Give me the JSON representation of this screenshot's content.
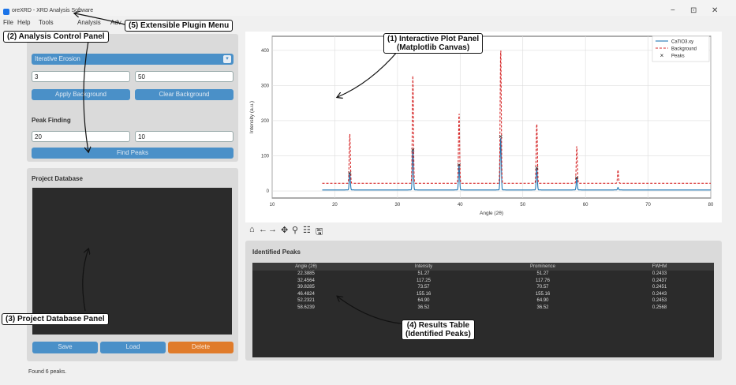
{
  "window": {
    "title": "oreXRD - XRD Analysis Software",
    "minimize": "−",
    "maximize": "⊡",
    "close": "✕"
  },
  "menu": [
    "File",
    "Help",
    "Tools",
    "Analysis",
    "Adv"
  ],
  "control_panel": {
    "method_select": "Iterative Erosion",
    "param1": "3",
    "param2": "50",
    "apply_background": "Apply Background",
    "clear_background": "Clear Background",
    "peak_finding_title": "Peak Finding",
    "peak_param1": "20",
    "peak_param2": "10",
    "find_peaks": "Find Peaks"
  },
  "database_panel": {
    "title": "Project Database",
    "save": "Save",
    "load": "Load",
    "delete": "Delete"
  },
  "status": "Found 6 peaks.",
  "toolbar": {
    "home_icon": "⌂",
    "back_icon": "←",
    "forward_icon": "→",
    "pan_icon": "✥",
    "zoom_icon": "⚲",
    "config_icon": "☷",
    "save_icon": "🖫"
  },
  "results": {
    "title": "Identified Peaks",
    "columns": [
      "Angle (2θ)",
      "Intensity",
      "Prominence",
      "FWHM"
    ],
    "rows": [
      [
        "22.3885",
        "51.27",
        "51.27",
        "0.2433"
      ],
      [
        "32.4564",
        "117.25",
        "117.76",
        "0.2437"
      ],
      [
        "39.8285",
        "73.57",
        "70.57",
        "0.2451"
      ],
      [
        "46.4824",
        "155.16",
        "155.16",
        "0.2443"
      ],
      [
        "52.2321",
        "64.90",
        "64.90",
        "0.2453"
      ],
      [
        "58.6239",
        "36.52",
        "36.52",
        "0.2568"
      ]
    ]
  },
  "callouts": {
    "plot": [
      "(1) Interactive Plot Panel",
      "(Matplotlib Canvas)"
    ],
    "control": "(2) Analysis Control Panel",
    "database": "(3) Project Database Panel",
    "table": [
      "(4) Results Table",
      "(Identified Peaks)"
    ],
    "plugin": "(5) Extensible Plugin Menu"
  },
  "chart_data": {
    "type": "line",
    "xlabel": "Angle (2θ)",
    "ylabel": "Intensity (a.u.)",
    "xlim": [
      10,
      80
    ],
    "ylim": [
      -20,
      440
    ],
    "xticks": [
      10,
      20,
      30,
      40,
      50,
      60,
      70,
      80
    ],
    "yticks": [
      0,
      100,
      200,
      300,
      400
    ],
    "grid": true,
    "legend_position": "top-right",
    "series": [
      {
        "name": "CaTiO3.xy",
        "style": "solid",
        "color": "#1f77b4",
        "baseline": 3,
        "peaks": [
          [
            22.39,
            51
          ],
          [
            32.46,
            117
          ],
          [
            39.83,
            74
          ],
          [
            46.48,
            155
          ],
          [
            52.23,
            65
          ],
          [
            58.62,
            37
          ],
          [
            65.2,
            10
          ]
        ]
      },
      {
        "name": "Background",
        "style": "dashed",
        "color": "#d62728",
        "baseline": 22,
        "peaks": [
          [
            22.39,
            163
          ],
          [
            32.46,
            330
          ],
          [
            39.83,
            225
          ],
          [
            46.48,
            410
          ],
          [
            52.23,
            195
          ],
          [
            58.62,
            130
          ],
          [
            65.2,
            60
          ]
        ]
      },
      {
        "name": "Peaks",
        "style": "markers",
        "color": "#222",
        "points": [
          [
            22.39,
            51
          ],
          [
            32.46,
            117
          ],
          [
            39.83,
            74
          ],
          [
            46.48,
            155
          ],
          [
            52.23,
            65
          ],
          [
            58.62,
            37
          ]
        ]
      }
    ]
  }
}
